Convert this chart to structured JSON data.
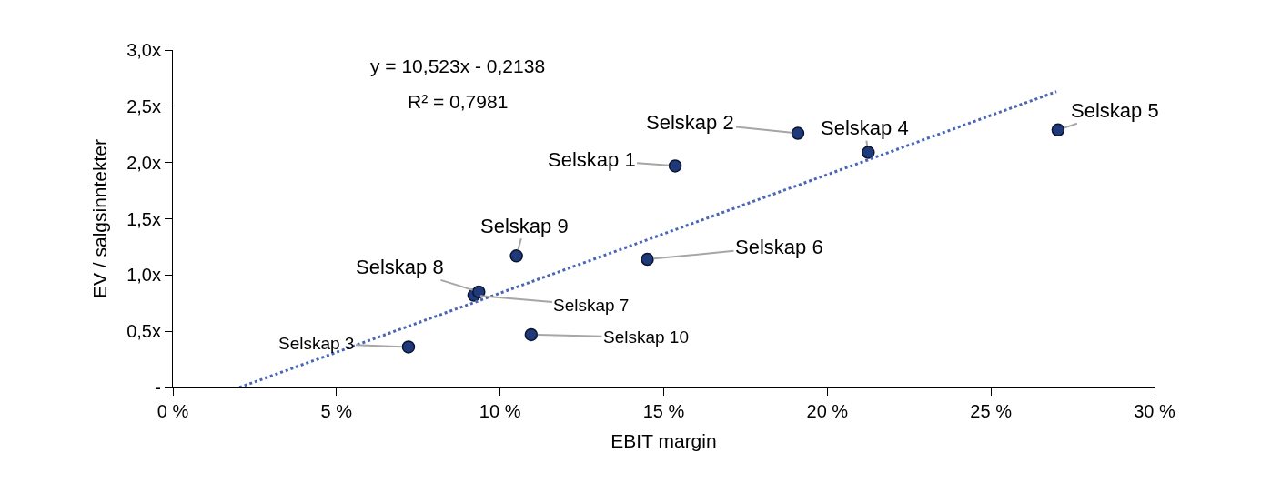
{
  "chart_data": {
    "type": "scatter",
    "xlabel": "EBIT margin",
    "ylabel": "EV / salgsinntekter",
    "series": [
      {
        "color": "#1f3a7a",
        "x": [
          15.35,
          19.1,
          7.2,
          21.25,
          27.05,
          14.5,
          9.2,
          9.35,
          10.5,
          10.95
        ],
        "values": [
          1.97,
          2.26,
          0.36,
          2.09,
          2.29,
          1.14,
          0.82,
          0.85,
          1.17,
          0.47
        ]
      },
      {
        "type": "line",
        "color": "#4a64b8",
        "line_style": "dotted",
        "marker": "none",
        "x": [
          2.03,
          27.0
        ],
        "values": [
          0.0,
          2.63
        ]
      }
    ],
    "marker": "circle",
    "xlim": [
      0,
      30
    ],
    "xticks": [
      {
        "value": 0,
        "label": "0 %"
      },
      {
        "value": 5,
        "label": "5 %"
      },
      {
        "value": 10,
        "label": "10 %"
      },
      {
        "value": 15,
        "label": "15 %"
      },
      {
        "value": 20,
        "label": "20 %"
      },
      {
        "value": 25,
        "label": "25 %"
      },
      {
        "value": 30,
        "label": "30 %"
      }
    ],
    "ylim": [
      0,
      3
    ],
    "yticks": [
      {
        "value": 0,
        "label": "-"
      },
      {
        "value": 0.5,
        "label": "0,5x"
      },
      {
        "value": 1,
        "label": "1,0x"
      },
      {
        "value": 1.5,
        "label": "1,5x"
      },
      {
        "value": 2,
        "label": "2,0x"
      },
      {
        "value": 2.5,
        "label": "2,5x"
      },
      {
        "value": 3,
        "label": "3,0x"
      }
    ],
    "annotations": [
      "y = 10,523x - 0,2138",
      "R² = 0,7981",
      {
        "text": "Selskap 1",
        "x": 15.35,
        "y": 1.97
      },
      {
        "text": "Selskap 2",
        "x": 19.1,
        "y": 2.26
      },
      {
        "text": "Selskap 3",
        "x": 7.2,
        "y": 0.36
      },
      {
        "text": "Selskap 4",
        "x": 21.25,
        "y": 2.09
      },
      {
        "text": "Selskap 5",
        "x": 27.05,
        "y": 2.29
      },
      {
        "text": "Selskap 6",
        "x": 14.5,
        "y": 1.14
      },
      {
        "text": "Selskap 7",
        "x": 9.2,
        "y": 0.82
      },
      {
        "text": "Selskap 8",
        "x": 9.35,
        "y": 0.85
      },
      {
        "text": "Selskap 9",
        "x": 10.5,
        "y": 1.17
      },
      {
        "text": "Selskap 10",
        "x": 10.95,
        "y": 0.47
      }
    ]
  }
}
